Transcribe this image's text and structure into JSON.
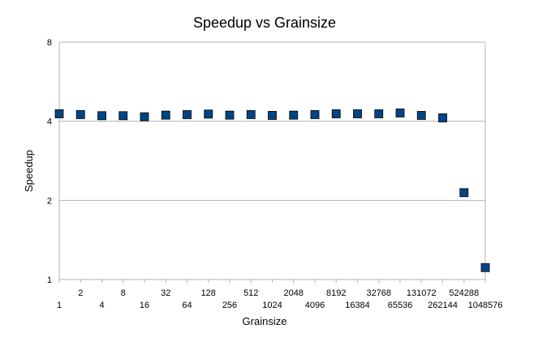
{
  "chart_data": {
    "type": "scatter",
    "title": "Speedup vs Grainsize",
    "xlabel": "Grainsize",
    "ylabel": "Speedup",
    "yscale": "log2",
    "ylim": [
      1,
      8
    ],
    "yticks": [
      "1",
      "2",
      "4",
      "8"
    ],
    "grid": "horizontal",
    "legend": "none",
    "marker": "square",
    "marker_color": "#004586",
    "x_labels": [
      "1",
      "2",
      "4",
      "8",
      "16",
      "32",
      "64",
      "128",
      "256",
      "512",
      "1024",
      "2048",
      "4096",
      "8192",
      "16384",
      "32768",
      "65536",
      "131072",
      "262144",
      "524288",
      "1048576"
    ],
    "values": [
      4.27,
      4.24,
      4.2,
      4.2,
      4.16,
      4.22,
      4.24,
      4.26,
      4.22,
      4.24,
      4.21,
      4.22,
      4.24,
      4.27,
      4.27,
      4.27,
      4.3,
      4.21,
      4.12,
      2.14,
      1.11
    ]
  }
}
